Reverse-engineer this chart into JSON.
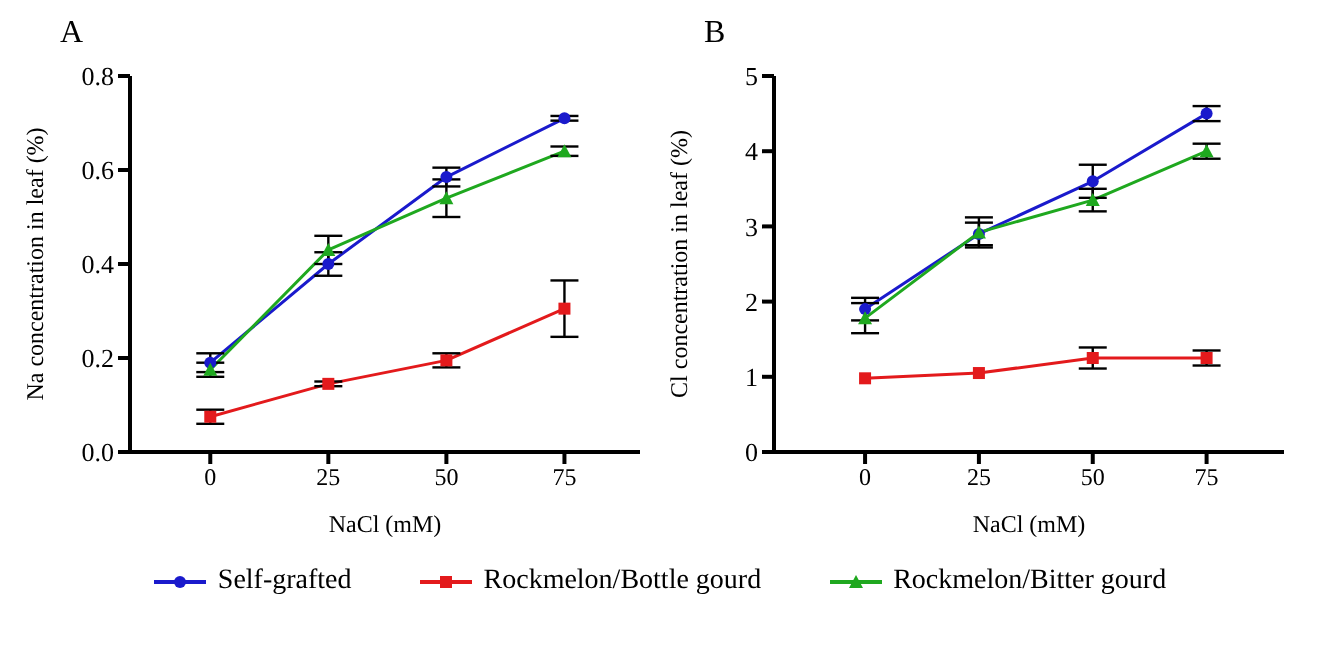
{
  "chart_data": [
    {
      "type": "line",
      "title": "A",
      "xlabel": "NaCl (mM)",
      "ylabel": "Na concentration in leaf (%)",
      "x": [
        0,
        25,
        50,
        75
      ],
      "xlim": [
        -17,
        91
      ],
      "xticks": [
        0,
        25,
        50,
        75
      ],
      "ylim": [
        0,
        0.8
      ],
      "yticks": [
        {
          "value": 0,
          "label": "0.0"
        },
        0.2,
        0.4,
        0.6,
        0.8
      ],
      "grid": false,
      "legend": "bottom",
      "series": [
        {
          "name": "Self-grafted",
          "color": "#1a1acc",
          "marker": "circle",
          "values": [
            0.19,
            0.4,
            0.585,
            0.71
          ],
          "errors": [
            0.02,
            0.025,
            0.02,
            0.005
          ]
        },
        {
          "name": "Rockmelon/Bottle gourd",
          "color": "#e31a1c",
          "marker": "square",
          "values": [
            0.075,
            0.145,
            0.195,
            0.305
          ],
          "errors": [
            0.015,
            0.005,
            0.015,
            0.06
          ]
        },
        {
          "name": "Rockmelon/Bitter gourd",
          "color": "#1fa81f",
          "marker": "triangle",
          "values": [
            0.175,
            0.43,
            0.54,
            0.64
          ],
          "errors": [
            0.015,
            0.03,
            0.04,
            0.01
          ]
        }
      ]
    },
    {
      "type": "line",
      "title": "B",
      "xlabel": "NaCl (mM)",
      "ylabel": "Cl concentration in leaf (%)",
      "x": [
        0,
        25,
        50,
        75
      ],
      "xlim": [
        -20,
        92
      ],
      "xticks": [
        0,
        25,
        50,
        75
      ],
      "ylim": [
        0,
        5
      ],
      "yticks": [
        0,
        1,
        2,
        3,
        4,
        5
      ],
      "grid": false,
      "series": [
        {
          "color": "#1a1acc",
          "marker": "circle",
          "values": [
            1.9,
            2.9,
            3.6,
            4.5
          ],
          "errors": [
            0.15,
            0.15,
            0.22,
            0.1
          ]
        },
        {
          "color": "#e31a1c",
          "marker": "square",
          "values": [
            0.98,
            1.05,
            1.25,
            1.25
          ],
          "errors": [
            null,
            null,
            0.14,
            0.1
          ]
        },
        {
          "color": "#1fa81f",
          "marker": "triangle",
          "values": [
            1.78,
            2.92,
            3.35,
            4.0
          ],
          "errors": [
            0.2,
            0.2,
            0.15,
            0.1
          ]
        }
      ]
    }
  ]
}
